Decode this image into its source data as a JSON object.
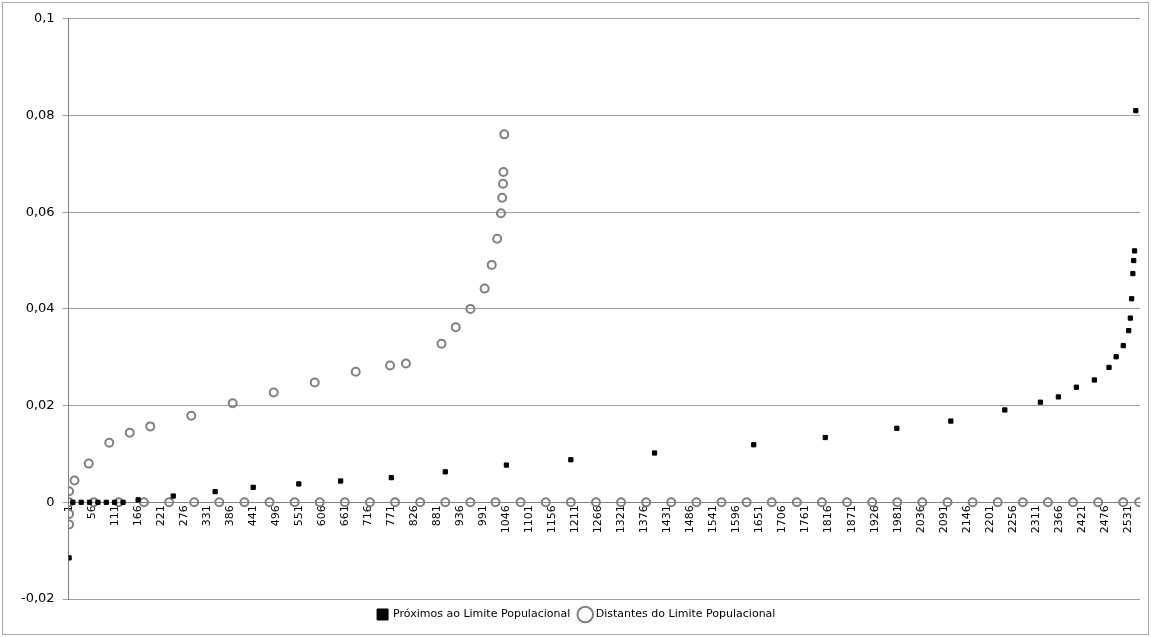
{
  "chart_data": {
    "type": "scatter",
    "legend": "bottom",
    "grid": "y",
    "xlim": [
      0,
      2560
    ],
    "xticks": [
      1,
      56,
      111,
      166,
      221,
      276,
      331,
      386,
      441,
      496,
      551,
      606,
      661,
      716,
      771,
      826,
      881,
      936,
      991,
      1046,
      1101,
      1156,
      1211,
      1266,
      1321,
      1376,
      1431,
      1486,
      1541,
      1596,
      1651,
      1706,
      1761,
      1816,
      1871,
      1926,
      1981,
      2036,
      2091,
      2146,
      2201,
      2256,
      2311,
      2366,
      2421,
      2476,
      2531
    ],
    "ylim": [
      -0.02,
      0.1
    ],
    "yticks": [
      {
        "value": -0.02,
        "label": "-0,02"
      },
      {
        "value": 0,
        "label": "0"
      },
      {
        "value": 0.02,
        "label": "0,02"
      },
      {
        "value": 0.04,
        "label": "0,04"
      },
      {
        "value": 0.06,
        "label": "0,06"
      },
      {
        "value": 0.08,
        "label": "0,08"
      },
      {
        "value": 0.1,
        "label": "0,1"
      }
    ],
    "series": [
      {
        "name": "Próximos ao Limite Populacional",
        "color": "#000000",
        "marker": "square",
        "x": [
          1,
          10,
          30,
          50,
          70,
          90,
          110,
          130,
          166,
          250,
          350,
          441,
          550,
          650,
          771,
          900,
          1046,
          1200,
          1400,
          1637,
          1808,
          1979,
          2108,
          2237,
          2322,
          2365,
          2408,
          2451,
          2486,
          2503,
          2520,
          2533,
          2537,
          2540,
          2543,
          2545,
          2547,
          2550
        ],
        "values": [
          -0.0115,
          0,
          0,
          0,
          0,
          0,
          0,
          0,
          0.0005,
          0.0013,
          0.0022,
          0.0031,
          0.0038,
          0.0044,
          0.0051,
          0.0063,
          0.0077,
          0.0088,
          0.0102,
          0.0119,
          0.0134,
          0.0153,
          0.0168,
          0.0191,
          0.0207,
          0.0218,
          0.0238,
          0.0253,
          0.0279,
          0.0301,
          0.0324,
          0.0355,
          0.0381,
          0.0421,
          0.0473,
          0.05,
          0.052,
          0.081
        ]
      },
      {
        "name": "Distantes do Limite Populacional",
        "color": "#808080",
        "marker": "circle",
        "x": [
          1,
          1,
          1,
          14,
          48,
          97,
          146,
          195,
          293,
          392,
          490,
          588,
          686,
          768,
          806,
          891,
          925,
          960,
          994,
          1011,
          1024,
          1033,
          1036,
          1038,
          1039,
          1041,
          1,
          60,
          120,
          180,
          240,
          300,
          360,
          420,
          480,
          540,
          600,
          660,
          720,
          780,
          840,
          900,
          960,
          1020,
          1080,
          1140,
          1200,
          1260,
          1320,
          1380,
          1440,
          1500,
          1560,
          1620,
          1680,
          1740,
          1800,
          1860,
          1920,
          1980,
          2040,
          2100,
          2160,
          2220,
          2280,
          2340,
          2400,
          2460,
          2520,
          2558
        ],
        "values": [
          0.0023,
          -0.0024,
          -0.0046,
          0.0045,
          0.008,
          0.0123,
          0.0144,
          0.0157,
          0.0179,
          0.0205,
          0.0227,
          0.0248,
          0.027,
          0.0283,
          0.0287,
          0.0328,
          0.0362,
          0.04,
          0.0442,
          0.0491,
          0.0545,
          0.0598,
          0.063,
          0.0659,
          0.0683,
          0.0761,
          0,
          0,
          0,
          0,
          0,
          0,
          0,
          0,
          0,
          0,
          0,
          0,
          0,
          0,
          0,
          0,
          0,
          0,
          0,
          0,
          0,
          0,
          0,
          0,
          0,
          0,
          0,
          0,
          0,
          0,
          0,
          0,
          0,
          0,
          0,
          0,
          0,
          0,
          0,
          0,
          0,
          0,
          0,
          0
        ]
      }
    ]
  }
}
